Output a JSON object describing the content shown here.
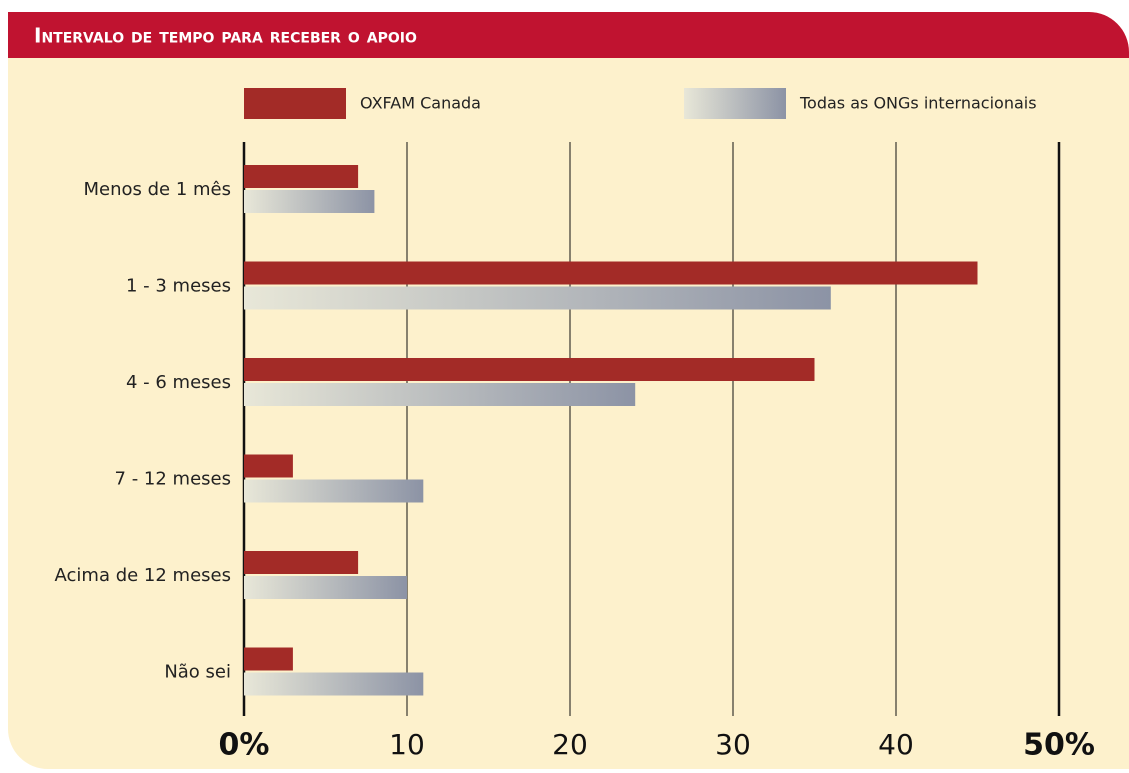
{
  "chart_data": {
    "type": "barh",
    "title": "Intervalo de tempo para receber o apoio",
    "categories": [
      "Menos de 1 mês",
      "1 - 3 meses",
      "4 - 6 meses",
      "7 - 12 meses",
      "Acima de 12 meses",
      "Não sei"
    ],
    "series": [
      {
        "name": "OXFAM Canada",
        "color": "#a32b27",
        "values": [
          7,
          45,
          35,
          3,
          7,
          3
        ]
      },
      {
        "name": "Todas as ONGs internacionais",
        "color": "#8c93a5",
        "values": [
          8,
          36,
          24,
          11,
          10,
          11
        ]
      }
    ],
    "xlim": [
      0,
      50
    ],
    "xticks": [
      {
        "value": 0,
        "label": "0%"
      },
      10,
      20,
      30,
      40,
      {
        "value": 50,
        "label": "50%"
      }
    ],
    "grid": true
  }
}
